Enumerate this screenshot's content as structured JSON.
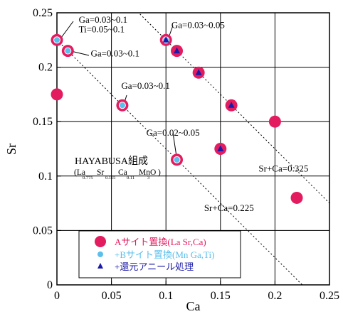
{
  "chart_data": {
    "type": "scatter",
    "xlabel": "Ca",
    "ylabel": "Sr",
    "xlim": [
      0,
      0.25
    ],
    "ylim": [
      0,
      0.25
    ],
    "x_ticks": [
      "0",
      "0.05",
      "0.1",
      "0.15",
      "0.2",
      "0.25"
    ],
    "y_ticks": [
      "0",
      "0.05",
      "0.1",
      "0.15",
      "0.2",
      "0.25"
    ],
    "grid": true,
    "legend_position": "bottom-left",
    "colors": {
      "a_site": "#e31c5f",
      "b_site": "#5bbfec",
      "annealed": "#1a1aa8",
      "legend_a": "#e31c5f",
      "legend_b": "#5bbfec",
      "legend_c": "#1a1aa8"
    },
    "series": [
      {
        "name": "Aサイト置換(La Sr,Ca)",
        "marker": "circle",
        "points": [
          [
            0,
            0.225
          ],
          [
            0,
            0.175
          ],
          [
            0.01,
            0.215
          ],
          [
            0.06,
            0.165
          ],
          [
            0.1,
            0.225
          ],
          [
            0.11,
            0.215
          ],
          [
            0.11,
            0.115
          ],
          [
            0.13,
            0.195
          ],
          [
            0.15,
            0.125
          ],
          [
            0.16,
            0.165
          ],
          [
            0.2,
            0.15
          ],
          [
            0.22,
            0.08
          ]
        ]
      },
      {
        "name": "+Bサイト置換(Mn Ga,Ti)",
        "marker": "small-circle",
        "points": [
          [
            0,
            0.225
          ],
          [
            0.01,
            0.215
          ],
          [
            0.06,
            0.165
          ],
          [
            0.1,
            0.225
          ],
          [
            0.11,
            0.115
          ]
        ]
      },
      {
        "name": "+還元アニール処理",
        "marker": "triangle",
        "points": [
          [
            0.1,
            0.225
          ],
          [
            0.11,
            0.215
          ],
          [
            0.13,
            0.195
          ],
          [
            0.15,
            0.125
          ],
          [
            0.16,
            0.165
          ]
        ]
      }
    ],
    "reference_lines": [
      {
        "label": "Sr+Ca=0.325",
        "sum": 0.325
      },
      {
        "label": "Sr+Ca=0.225",
        "sum": 0.225
      }
    ],
    "annotations": [
      {
        "text": "Ga=0.03~0.1",
        "x": 0.02,
        "y": 0.241
      },
      {
        "text": "Ti=0.05~0.1",
        "x": 0.02,
        "y": 0.232
      },
      {
        "text": "Ga=0.03~0.1",
        "x": 0.031,
        "y": 0.21
      },
      {
        "text": "Ga=0.03~0.05",
        "x": 0.105,
        "y": 0.236
      },
      {
        "text": "Ga=0.03~0.1",
        "x": 0.059,
        "y": 0.18
      },
      {
        "text": "Ga=0.02~0.05",
        "x": 0.082,
        "y": 0.137
      },
      {
        "text": "Sr+Ca=0.325",
        "x": 0.185,
        "y": 0.104
      },
      {
        "text": "Sr+Ca=0.225",
        "x": 0.135,
        "y": 0.068
      }
    ],
    "composition_label": {
      "title": "HAYABUSA組成",
      "formula": [
        {
          "text": "(La",
          "sub": "0.775"
        },
        {
          "text": "Sr",
          "sub": "0.115"
        },
        {
          "text": "Ca",
          "sub": "0.11"
        },
        {
          "text": "MnO",
          "sub": "3"
        },
        {
          "text": ")",
          "sub": ""
        }
      ]
    }
  }
}
